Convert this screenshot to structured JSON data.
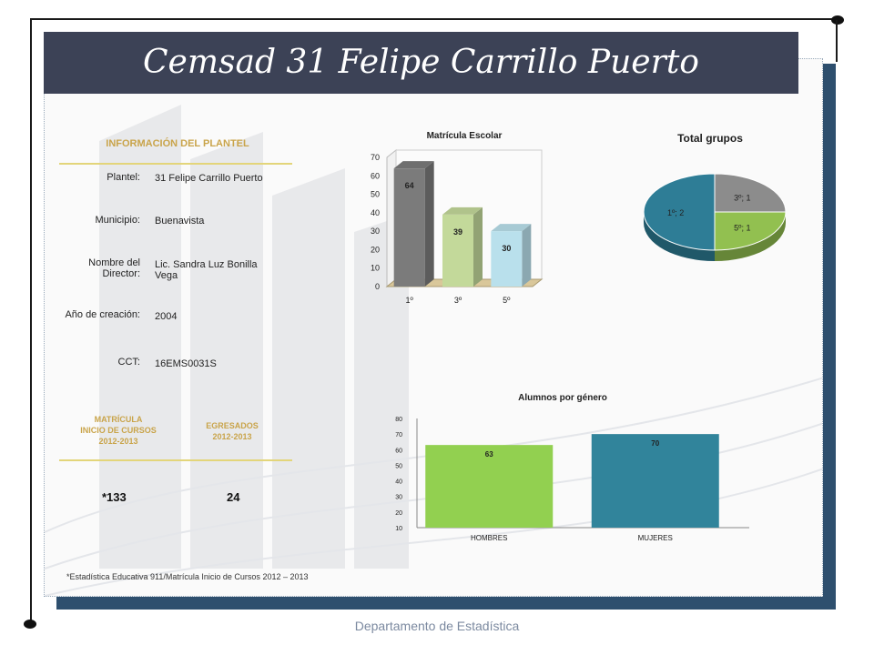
{
  "title": "Cemsad 31 Felipe Carrillo Puerto",
  "info": {
    "section_title": "INFORMACIÓN DEL PLANTEL",
    "rows": [
      {
        "label": "Plantel:",
        "value": "31 Felipe Carrillo Puerto"
      },
      {
        "label": "Municipio:",
        "value": "Buenavista"
      },
      {
        "label": "Nombre del Director:",
        "value": "Lic. Sandra Luz Bonilla Vega"
      },
      {
        "label": "Año de creación:",
        "value": "2004"
      },
      {
        "label": "CCT:",
        "value": "16EMS0031S"
      }
    ]
  },
  "stats": {
    "matricula_title_1": "MATRÍCULA",
    "matricula_title_2": "INICIO DE CURSOS",
    "matricula_title_3": "2012-2013",
    "egresados_title_1": "EGRESADOS",
    "egresados_title_2": "2012-2013",
    "matricula_value": "*133",
    "egresados_value": "24"
  },
  "footnote": "*Estadística Educativa 911/Matrícula Inicio de Cursos 2012 – 2013",
  "footer": "Departamento de Estadística",
  "chart_data": [
    {
      "type": "bar",
      "title": "Matrícula Escolar",
      "categories": [
        "1º",
        "3º",
        "5º"
      ],
      "values": [
        64,
        39,
        30
      ],
      "colors": [
        "#7b7b7b",
        "#c3d99a",
        "#b9e0ec"
      ],
      "ylim": [
        0,
        70
      ],
      "yticks": [
        0,
        10,
        20,
        30,
        40,
        50,
        60,
        70
      ],
      "xlabel": "",
      "ylabel": "",
      "grid": false
    },
    {
      "type": "pie",
      "title": "Total grupos",
      "slices": [
        {
          "label": "1º; 2",
          "value": 2,
          "color": "#2e7d96"
        },
        {
          "label": "3º; 1",
          "value": 1,
          "color": "#8c8c8c"
        },
        {
          "label": "5º; 1",
          "value": 1,
          "color": "#92c050"
        }
      ]
    },
    {
      "type": "bar",
      "title": "Alumnos por género",
      "categories": [
        "HOMBRES",
        "MUJERES"
      ],
      "values": [
        63,
        70
      ],
      "colors": [
        "#92d050",
        "#31849b"
      ],
      "ylim": [
        10,
        80
      ],
      "yticks": [
        10,
        20,
        30,
        40,
        50,
        60,
        70,
        80
      ],
      "xlabel": "",
      "ylabel": "",
      "grid": false
    }
  ]
}
